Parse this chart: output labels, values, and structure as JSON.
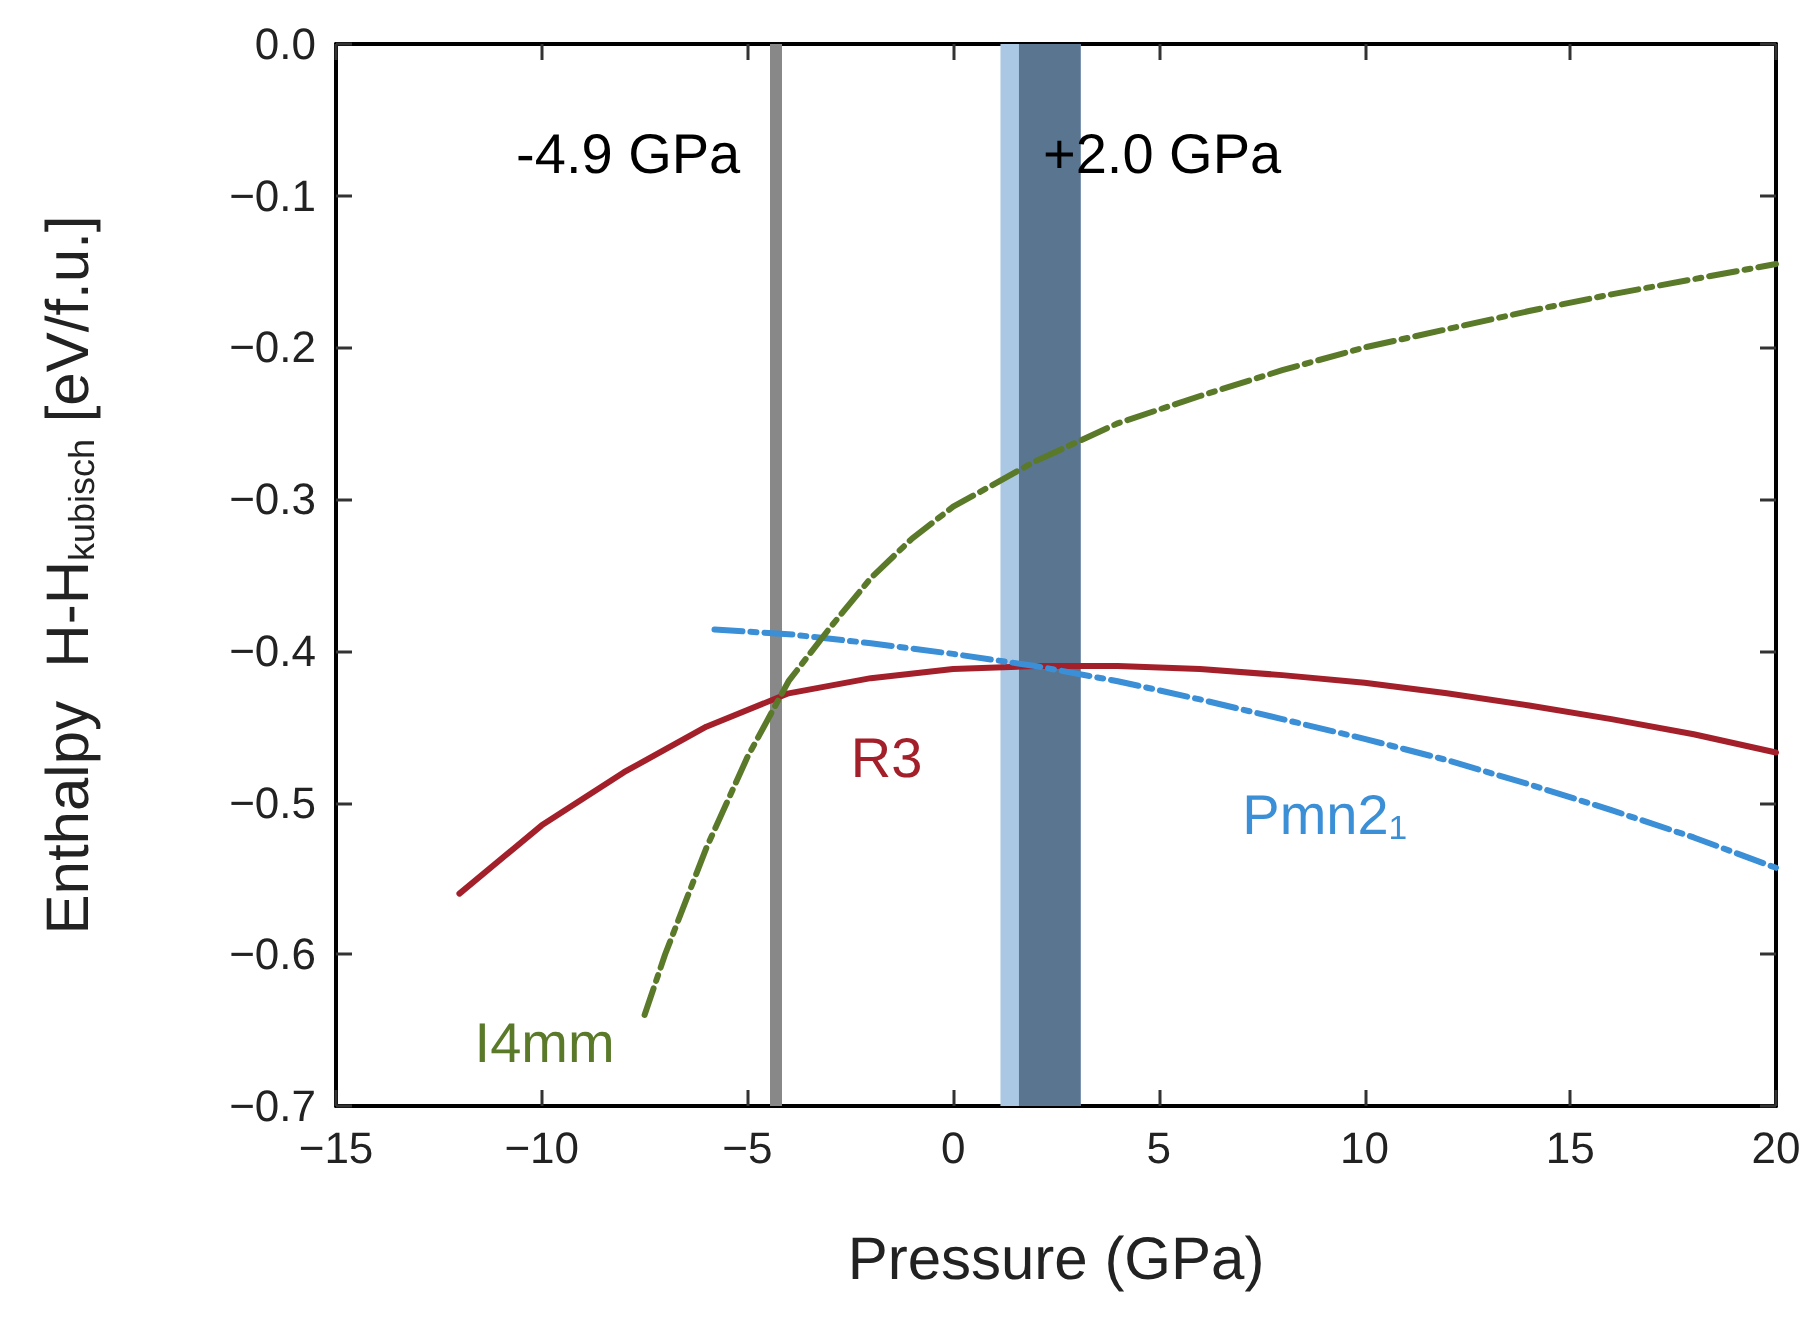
{
  "chart_data": {
    "type": "line",
    "xlabel": "Pressure (GPa)",
    "ylabel": "Enthalpy  H-H$_{kubisch}$ [eV/f.u.]",
    "xlim": [
      -15,
      20
    ],
    "xticks": [
      -15,
      -10,
      -5,
      0,
      5,
      10,
      15,
      20
    ],
    "ylim": [
      -0.7,
      0
    ],
    "yticks": [
      -0.7,
      -0.6,
      -0.5,
      -0.4,
      -0.3,
      -0.2,
      -0.1,
      {
        "value": 0,
        "label": "0.0"
      }
    ],
    "grid": false,
    "legend": false,
    "marker": "none",
    "series": [
      {
        "name": "R3",
        "color": "#a3202a",
        "line_style": "solid",
        "x": [
          -12,
          -10,
          -8,
          -6,
          -4,
          -2,
          0,
          2,
          4,
          6,
          8,
          10,
          12,
          14,
          16,
          18,
          20
        ],
        "values": [
          -0.56,
          -0.515,
          -0.48,
          -0.45,
          -0.428,
          -0.418,
          -0.412,
          -0.41,
          -0.41,
          -0.412,
          -0.416,
          -0.421,
          -0.428,
          -0.436,
          -0.445,
          -0.455,
          -0.467
        ]
      },
      {
        "name": "Pmn2$_{1}$",
        "color": "#3a8fd6",
        "line_style": "dashed",
        "x": [
          -5.8,
          -4,
          -2,
          0,
          2,
          4,
          6,
          8,
          10,
          12,
          14,
          16,
          18,
          20
        ],
        "values": [
          -0.386,
          -0.389,
          -0.395,
          -0.402,
          -0.41,
          -0.42,
          -0.432,
          -0.445,
          -0.458,
          -0.472,
          -0.488,
          -0.505,
          -0.523,
          -0.543
        ]
      },
      {
        "name": "I4mm",
        "color": "#5a7a2a",
        "line_style": "dashed",
        "x": [
          -7.5,
          -7,
          -6,
          -5,
          -4,
          -3,
          -2,
          -1,
          0,
          2,
          4,
          6,
          8,
          10,
          12,
          14,
          16,
          18,
          20
        ],
        "values": [
          -0.64,
          -0.6,
          -0.53,
          -0.47,
          -0.42,
          -0.385,
          -0.352,
          -0.326,
          -0.305,
          -0.275,
          -0.25,
          -0.232,
          -0.215,
          -0.2,
          -0.188,
          -0.176,
          -0.165,
          -0.155,
          -0.145
        ]
      }
    ],
    "ref_lines": [
      {
        "axis": "x",
        "value": -4.3,
        "label": "-4.9 GPa",
        "color": "#888888"
      }
    ],
    "bands": [
      {
        "axis": "x",
        "from": 1.15,
        "to": 3.1,
        "color": "#aac8e4"
      },
      {
        "axis": "x",
        "from": 1.6,
        "to": 3.1,
        "label": "+2.0 GPa",
        "color": "#5a7590"
      }
    ]
  }
}
